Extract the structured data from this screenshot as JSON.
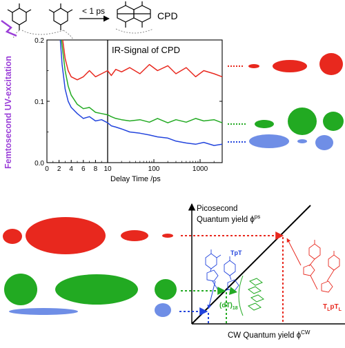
{
  "top_panel": {
    "reaction_arrow_label": "< 1 ps",
    "product_label": "CPD",
    "side_label": "Femtosecond UV-excitation",
    "plot_label": "IR-Signal of CPD",
    "xlabel": "Delay Time /ps",
    "y_ticks": [
      "0.0",
      "0.1",
      "0.2"
    ],
    "x_ticks_linear": [
      "0",
      "2",
      "4",
      "6",
      "8",
      "10"
    ],
    "x_ticks_log": [
      "100",
      "1000"
    ]
  },
  "chart_data": {
    "type": "line",
    "xlabel": "Delay Time /ps",
    "ylabel": "",
    "ylim": [
      0,
      0.2
    ],
    "x_axis": "linear 0-10 ps, logarithmic 10-3000 ps",
    "annotation": "IR-Signal of CPD",
    "series": [
      {
        "color": "#e8281e",
        "x": [
          2.6,
          3,
          3.5,
          4,
          5,
          6,
          7,
          8,
          9,
          10,
          12,
          15,
          20,
          30,
          50,
          80,
          120,
          200,
          300,
          500,
          800,
          1200,
          2000,
          3000
        ],
        "y": [
          0.2,
          0.17,
          0.15,
          0.14,
          0.135,
          0.14,
          0.15,
          0.14,
          0.145,
          0.15,
          0.142,
          0.152,
          0.148,
          0.155,
          0.145,
          0.16,
          0.15,
          0.158,
          0.145,
          0.155,
          0.14,
          0.15,
          0.145,
          0.14
        ]
      },
      {
        "color": "#22aa22",
        "x": [
          2.4,
          3,
          3.5,
          4,
          5,
          6,
          7,
          8,
          9,
          10,
          12,
          15,
          20,
          30,
          50,
          80,
          120,
          200,
          300,
          500,
          800,
          1200,
          2000,
          3000
        ],
        "y": [
          0.2,
          0.15,
          0.125,
          0.11,
          0.095,
          0.088,
          0.09,
          0.082,
          0.08,
          0.078,
          0.075,
          0.072,
          0.07,
          0.068,
          0.07,
          0.066,
          0.072,
          0.065,
          0.07,
          0.066,
          0.072,
          0.068,
          0.07,
          0.065
        ]
      },
      {
        "color": "#2244dd",
        "x": [
          2.2,
          2.5,
          3,
          3.5,
          4,
          5,
          6,
          7,
          8,
          9,
          10,
          12,
          15,
          20,
          30,
          50,
          80,
          120,
          200,
          300,
          500,
          800,
          1200,
          2000,
          3000
        ],
        "y": [
          0.2,
          0.16,
          0.12,
          0.1,
          0.09,
          0.08,
          0.072,
          0.075,
          0.068,
          0.07,
          0.065,
          0.06,
          0.058,
          0.055,
          0.05,
          0.048,
          0.045,
          0.042,
          0.04,
          0.035,
          0.032,
          0.03,
          0.033,
          0.028,
          0.03
        ]
      }
    ]
  },
  "bottom_panel": {
    "y_axis_label_line1": "Picosecond",
    "y_axis_label_line2": "Quantum yield ϕ",
    "y_axis_label_sup": "ps",
    "x_axis_label": "CW Quantum yield ϕ",
    "x_axis_label_sup": "CW",
    "tpt_label": "TpT",
    "dt18_label": "(dT)",
    "dt18_sub": "18",
    "tlptl_label": "T",
    "tlptl_sub1": "L",
    "tlptl_mid": "pT",
    "tlptl_sub2": "L"
  },
  "colors": {
    "red": "#e8281e",
    "green": "#22aa22",
    "blue": "#2244dd",
    "light_blue": "#6f8ee6",
    "violet": "#9b3fd8"
  }
}
